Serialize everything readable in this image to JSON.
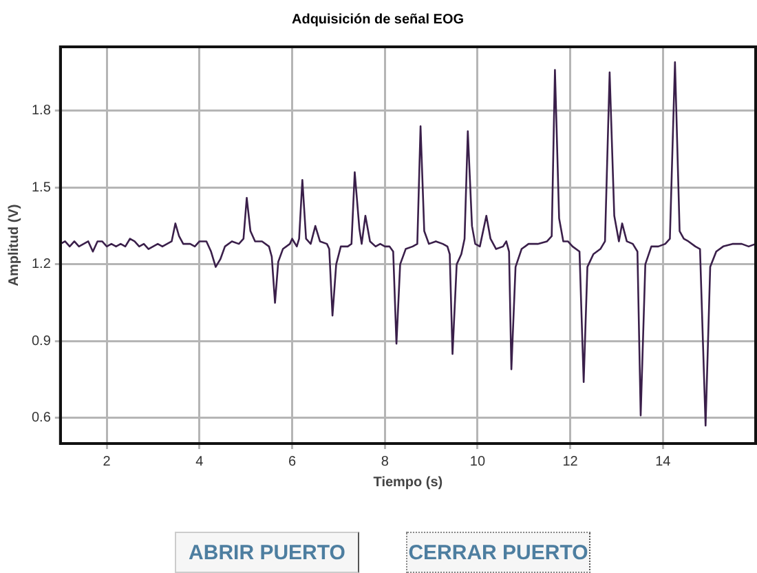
{
  "chart_data": {
    "type": "line",
    "title": "Adquisición de señal EOG",
    "xlabel": "Tiempo (s)",
    "ylabel": "Amplitud (V)",
    "xlim": [
      1,
      16
    ],
    "ylim": [
      0.5,
      2.05
    ],
    "xticks": [
      2,
      4,
      6,
      8,
      10,
      12,
      14
    ],
    "yticks": [
      0.6,
      0.9,
      1.2,
      1.5,
      1.8
    ],
    "grid": true,
    "legend": false,
    "marker": "none",
    "line_style": "solid",
    "annotations": [
      "ABRIR PUERTO",
      "CERRAR PUERTO"
    ],
    "series": [
      {
        "color": "#3a1f4a",
        "x": [
          1.0,
          1.1,
          1.2,
          1.3,
          1.4,
          1.5,
          1.6,
          1.7,
          1.8,
          1.9,
          2.0,
          2.1,
          2.2,
          2.3,
          2.4,
          2.5,
          2.6,
          2.7,
          2.8,
          2.9,
          3.0,
          3.1,
          3.2,
          3.3,
          3.4,
          3.48,
          3.56,
          3.65,
          3.8,
          3.9,
          4.0,
          4.15,
          4.25,
          4.35,
          4.45,
          4.55,
          4.7,
          4.85,
          4.95,
          5.02,
          5.1,
          5.2,
          5.35,
          5.5,
          5.56,
          5.63,
          5.7,
          5.8,
          5.95,
          6.0,
          6.1,
          6.15,
          6.22,
          6.3,
          6.4,
          6.5,
          6.6,
          6.75,
          6.8,
          6.87,
          6.95,
          7.05,
          7.2,
          7.28,
          7.35,
          7.45,
          7.5,
          7.58,
          7.68,
          7.8,
          7.9,
          8.0,
          8.1,
          8.18,
          8.25,
          8.33,
          8.45,
          8.6,
          8.7,
          8.77,
          8.85,
          8.95,
          9.1,
          9.25,
          9.35,
          9.4,
          9.46,
          9.55,
          9.65,
          9.72,
          9.79,
          9.88,
          9.95,
          10.05,
          10.19,
          10.28,
          10.4,
          10.55,
          10.62,
          10.68,
          10.73,
          10.82,
          10.95,
          11.1,
          11.3,
          11.5,
          11.6,
          11.67,
          11.76,
          11.85,
          11.95,
          12.05,
          12.2,
          12.29,
          12.37,
          12.5,
          12.65,
          12.75,
          12.85,
          12.95,
          13.05,
          13.12,
          13.22,
          13.35,
          13.45,
          13.52,
          13.62,
          13.75,
          13.9,
          14.05,
          14.15,
          14.26,
          14.36,
          14.45,
          14.55,
          14.7,
          14.8,
          14.92,
          15.02,
          15.15,
          15.3,
          15.5,
          15.7,
          15.85,
          16.0
        ],
        "values": [
          1.28,
          1.29,
          1.27,
          1.29,
          1.27,
          1.28,
          1.29,
          1.25,
          1.29,
          1.29,
          1.27,
          1.28,
          1.27,
          1.28,
          1.27,
          1.3,
          1.29,
          1.27,
          1.28,
          1.26,
          1.27,
          1.28,
          1.27,
          1.28,
          1.29,
          1.36,
          1.31,
          1.28,
          1.28,
          1.27,
          1.29,
          1.29,
          1.25,
          1.19,
          1.22,
          1.27,
          1.29,
          1.28,
          1.3,
          1.46,
          1.33,
          1.29,
          1.29,
          1.27,
          1.23,
          1.05,
          1.21,
          1.26,
          1.28,
          1.3,
          1.27,
          1.3,
          1.53,
          1.3,
          1.28,
          1.35,
          1.29,
          1.28,
          1.26,
          1.0,
          1.2,
          1.27,
          1.27,
          1.28,
          1.56,
          1.34,
          1.28,
          1.39,
          1.29,
          1.27,
          1.28,
          1.27,
          1.27,
          1.25,
          0.89,
          1.2,
          1.26,
          1.27,
          1.28,
          1.74,
          1.33,
          1.28,
          1.29,
          1.28,
          1.27,
          1.24,
          0.85,
          1.2,
          1.24,
          1.3,
          1.72,
          1.35,
          1.28,
          1.27,
          1.39,
          1.3,
          1.26,
          1.27,
          1.29,
          1.25,
          0.79,
          1.19,
          1.26,
          1.28,
          1.28,
          1.29,
          1.31,
          1.96,
          1.38,
          1.29,
          1.29,
          1.27,
          1.25,
          0.74,
          1.19,
          1.24,
          1.26,
          1.29,
          1.95,
          1.39,
          1.29,
          1.36,
          1.29,
          1.28,
          1.25,
          0.61,
          1.2,
          1.27,
          1.27,
          1.28,
          1.3,
          1.99,
          1.33,
          1.3,
          1.29,
          1.27,
          1.26,
          0.57,
          1.19,
          1.25,
          1.27,
          1.28,
          1.28,
          1.27,
          1.28
        ]
      }
    ]
  }
}
